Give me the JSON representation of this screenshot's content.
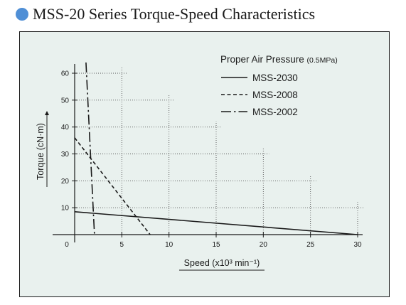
{
  "header": {
    "title": "MSS-20 Series Torque-Speed Characteristics",
    "bullet_color": "#4f8fd6"
  },
  "chart_data": {
    "type": "line",
    "xlabel": "Speed (x10³ min⁻¹)",
    "ylabel": "Torque (cN·m)",
    "xlim": [
      0,
      30
    ],
    "ylim": [
      0,
      60
    ],
    "x_ticks": [
      5,
      10,
      15,
      20,
      25,
      30
    ],
    "y_ticks": [
      10,
      20,
      30,
      40,
      50,
      60
    ],
    "origin_label": "0",
    "grid": "dotted staircase",
    "legend": {
      "title": "Proper Air Pressure",
      "title_note": "(0.5MPa)",
      "placement": "top-right"
    },
    "series": [
      {
        "name": "MSS-2030",
        "dash": "solid",
        "x": [
          0,
          30
        ],
        "y": [
          8.5,
          0
        ]
      },
      {
        "name": "MSS-2008",
        "dash": "dashed",
        "x": [
          0,
          8
        ],
        "y": [
          36,
          0
        ]
      },
      {
        "name": "MSS-2002",
        "dash": "dashdot",
        "x": [
          1.2,
          2.1
        ],
        "y": [
          64,
          0
        ]
      }
    ],
    "colors": {
      "background": "#e9f1ee",
      "line": "#1a1a1a",
      "grid": "#555555"
    }
  }
}
